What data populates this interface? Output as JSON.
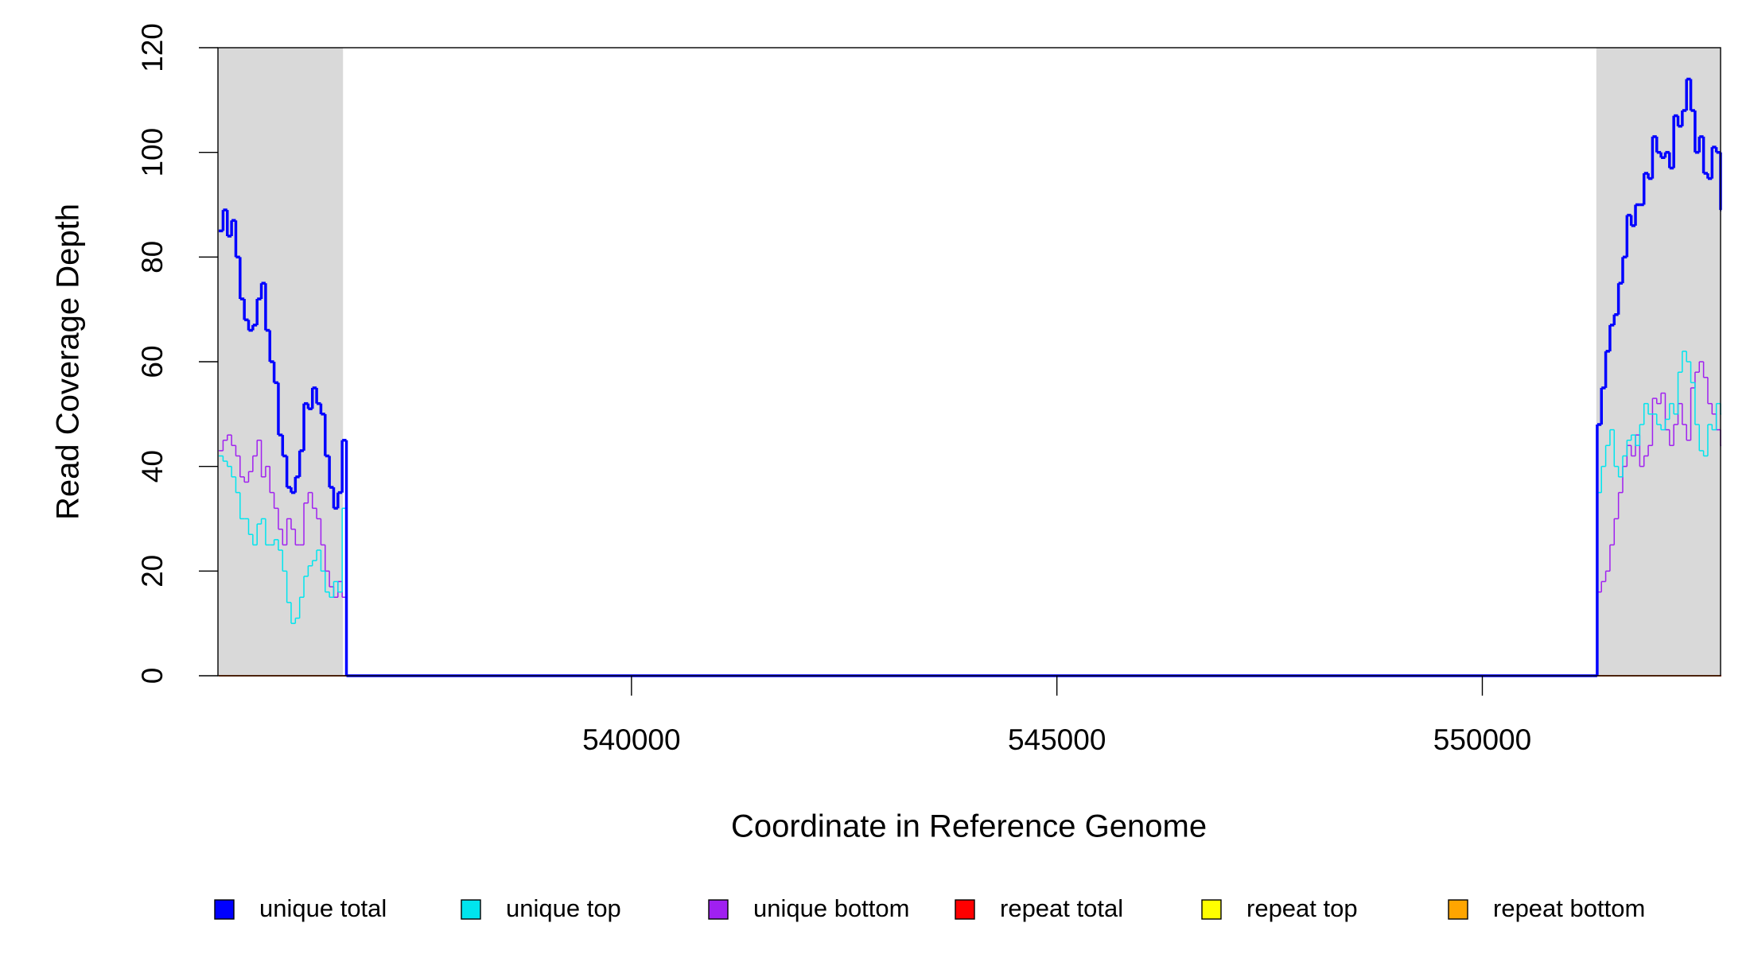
{
  "chart_data": {
    "type": "line",
    "step": true,
    "xlabel": "Coordinate in Reference Genome",
    "ylabel": "Read Coverage Depth",
    "xlim": [
      535140,
      552800
    ],
    "ylim": [
      0,
      120
    ],
    "xticks": [
      540000,
      545000,
      550000
    ],
    "yticks": [
      0,
      20,
      40,
      60,
      80,
      100,
      120
    ],
    "shaded_regions": [
      [
        535140,
        536610
      ],
      [
        551340,
        552800
      ]
    ],
    "shade_color": "#d9d9d9",
    "x": [
      535150,
      535200,
      535250,
      535300,
      535350,
      535400,
      535450,
      535500,
      535550,
      535600,
      535650,
      535700,
      535750,
      535800,
      535850,
      535900,
      535950,
      536000,
      536050,
      536100,
      536150,
      536200,
      536250,
      536300,
      536350,
      536400,
      536450,
      536500,
      536550,
      536600,
      536650,
      551300,
      551350,
      551400,
      551450,
      551500,
      551550,
      551600,
      551650,
      551700,
      551750,
      551800,
      551850,
      551900,
      551950,
      552000,
      552050,
      552100,
      552150,
      552200,
      552250,
      552300,
      552350,
      552400,
      552450,
      552500,
      552550,
      552600,
      552650,
      552700,
      552750,
      552800
    ],
    "series": [
      {
        "name": "unique total",
        "color": "#0000ff",
        "width": 3.5,
        "values": [
          85,
          89,
          84,
          87,
          80,
          72,
          68,
          66,
          67,
          72,
          75,
          66,
          60,
          56,
          46,
          42,
          36,
          35,
          38,
          43,
          52,
          51,
          55,
          52,
          50,
          42,
          36,
          32,
          35,
          45,
          0,
          0,
          48,
          55,
          62,
          67,
          69,
          75,
          80,
          88,
          86,
          90,
          90,
          96,
          95,
          103,
          100,
          99,
          100,
          97,
          107,
          105,
          108,
          114,
          108,
          100,
          103,
          96,
          95,
          101,
          100,
          89
        ]
      },
      {
        "name": "unique top",
        "color": "#00e5ee",
        "width": 1.5,
        "values": [
          42,
          41,
          40,
          38,
          35,
          30,
          30,
          27,
          25,
          29,
          30,
          25,
          25,
          26,
          24,
          20,
          14,
          10,
          11,
          15,
          19,
          21,
          22,
          24,
          20,
          16,
          15,
          18,
          16,
          32,
          0,
          0,
          35,
          40,
          44,
          47,
          40,
          38,
          42,
          45,
          46,
          44,
          48,
          52,
          50,
          50,
          48,
          47,
          49,
          52,
          50,
          58,
          62,
          60,
          56,
          48,
          43,
          42,
          48,
          47,
          52,
          50
        ]
      },
      {
        "name": "unique bottom",
        "color": "#a020f0",
        "width": 1.5,
        "values": [
          43,
          45,
          46,
          44,
          42,
          38,
          37,
          39,
          42,
          45,
          38,
          40,
          35,
          32,
          28,
          25,
          30,
          28,
          25,
          25,
          33,
          35,
          32,
          30,
          25,
          20,
          17,
          15,
          18,
          15,
          0,
          0,
          16,
          18,
          20,
          25,
          30,
          35,
          40,
          44,
          42,
          46,
          40,
          42,
          44,
          53,
          52,
          54,
          47,
          44,
          48,
          52,
          48,
          45,
          55,
          58,
          60,
          57,
          52,
          50,
          47,
          44
        ]
      },
      {
        "name": "repeat total",
        "color": "#ff0000",
        "width": 1.5,
        "values": [
          0,
          0,
          0,
          0,
          0,
          0,
          0,
          0,
          0,
          0,
          0,
          0,
          0,
          0,
          0,
          0,
          0,
          0,
          0,
          0,
          0,
          0,
          0,
          0,
          0,
          0,
          0,
          0,
          0,
          0,
          0,
          0,
          0,
          0,
          0,
          0,
          0,
          0,
          0,
          0,
          0,
          0,
          0,
          0,
          0,
          0,
          0,
          0,
          0,
          0,
          0,
          0,
          0,
          0,
          0,
          0,
          0,
          0,
          0,
          0,
          0,
          0
        ]
      },
      {
        "name": "repeat top",
        "color": "#ffff00",
        "width": 1.5,
        "values": [
          0,
          0,
          0,
          0,
          0,
          0,
          0,
          0,
          0,
          0,
          0,
          0,
          0,
          0,
          0,
          0,
          0,
          0,
          0,
          0,
          0,
          0,
          0,
          0,
          0,
          0,
          0,
          0,
          0,
          0,
          0,
          0,
          0,
          0,
          0,
          0,
          0,
          0,
          0,
          0,
          0,
          0,
          0,
          0,
          0,
          0,
          0,
          0,
          0,
          0,
          0,
          0,
          0,
          0,
          0,
          0,
          0,
          0,
          0,
          0,
          0,
          0
        ]
      },
      {
        "name": "repeat bottom",
        "color": "#ffa500",
        "width": 1.5,
        "values": [
          0,
          0,
          0,
          0,
          0,
          0,
          0,
          0,
          0,
          0,
          0,
          0,
          0,
          0,
          0,
          0,
          0,
          0,
          0,
          0,
          0,
          0,
          0,
          0,
          0,
          0,
          0,
          0,
          0,
          0,
          0,
          0,
          0,
          0,
          0,
          0,
          0,
          0,
          0,
          0,
          0,
          0,
          0,
          0,
          0,
          0,
          0,
          0,
          0,
          0,
          0,
          0,
          0,
          0,
          0,
          0,
          0,
          0,
          0,
          0,
          0,
          0
        ]
      }
    ]
  }
}
